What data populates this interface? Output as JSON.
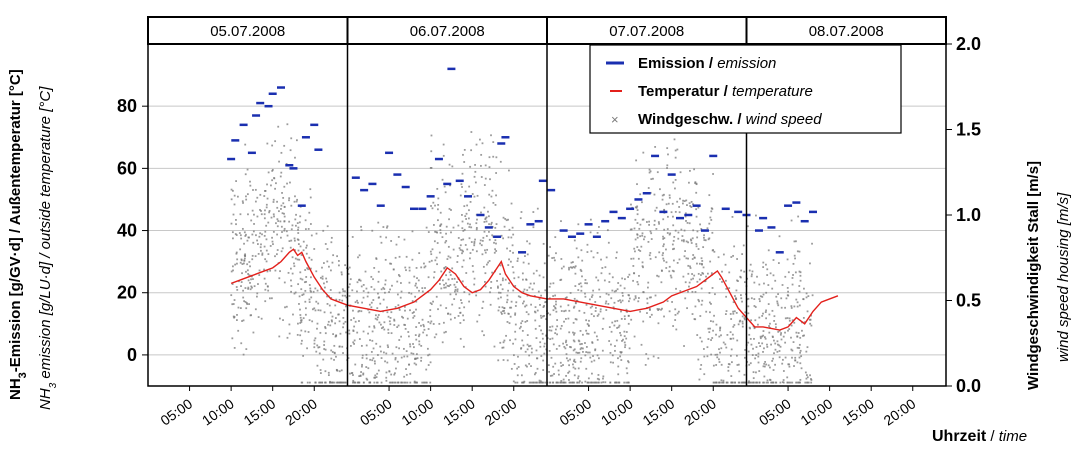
{
  "chart_data": {
    "type": "scatter",
    "dates": [
      "05.07.2008",
      "06.07.2008",
      "07.07.2008",
      "08.07.2008"
    ],
    "x_tick_labels": [
      "05:00",
      "10:00",
      "15:00",
      "20:00"
    ],
    "y_left": {
      "label_main": "NH",
      "label_main_sub": "3",
      "label_main_rest": "-Emission [g/GV·d]  / Außentemperatur [°C]",
      "label_sub": "NH",
      "label_sub_sub": "3",
      "label_sub_rest": " emission [g/LU·d] / outside temperature [°C]",
      "ticks": [
        0,
        20,
        40,
        60,
        80
      ],
      "range": [
        -10,
        100
      ]
    },
    "y_right": {
      "label_main": "Windgeschwindigkeit Stall [m/s]",
      "label_sub": "wind speed housing [m/s]",
      "ticks": [
        "0.0",
        "0.5",
        "1.0",
        "1.5",
        "2.0"
      ],
      "range": [
        0,
        2.0
      ]
    },
    "x_axis": {
      "label_main": "Uhrzeit",
      "label_sep": " / ",
      "label_sub": "time",
      "unit": "hours since 05.07.2008 00:00",
      "range": [
        0,
        96
      ]
    },
    "grid": true,
    "legend_position": "top-right",
    "series": [
      {
        "name": "Emission",
        "name_en": "emission",
        "color": "#1a2fb0",
        "marker": "dash",
        "axis": "left",
        "points": [
          [
            10.0,
            63
          ],
          [
            10.5,
            69
          ],
          [
            11.5,
            74
          ],
          [
            12.5,
            65
          ],
          [
            13.0,
            77
          ],
          [
            13.5,
            81
          ],
          [
            14.5,
            80
          ],
          [
            15.0,
            84
          ],
          [
            16.0,
            86
          ],
          [
            17.0,
            61
          ],
          [
            17.5,
            60
          ],
          [
            18.5,
            48
          ],
          [
            19.0,
            70
          ],
          [
            20.0,
            74
          ],
          [
            20.5,
            66
          ],
          [
            25.0,
            57
          ],
          [
            26.0,
            53
          ],
          [
            27.0,
            55
          ],
          [
            28.0,
            48
          ],
          [
            29.0,
            65
          ],
          [
            30.0,
            58
          ],
          [
            31.0,
            54
          ],
          [
            32.0,
            47
          ],
          [
            33.0,
            47
          ],
          [
            34.0,
            51
          ],
          [
            35.0,
            63
          ],
          [
            36.0,
            55
          ],
          [
            36.5,
            92
          ],
          [
            37.5,
            56
          ],
          [
            38.5,
            51
          ],
          [
            40.0,
            45
          ],
          [
            41.0,
            41
          ],
          [
            42.0,
            38
          ],
          [
            42.5,
            68
          ],
          [
            43.0,
            70
          ],
          [
            45.0,
            33
          ],
          [
            46.0,
            42
          ],
          [
            47.0,
            43
          ],
          [
            47.5,
            56
          ],
          [
            48.5,
            53
          ],
          [
            50.0,
            40
          ],
          [
            51.0,
            38
          ],
          [
            52.0,
            39
          ],
          [
            53.0,
            42
          ],
          [
            54.0,
            38
          ],
          [
            55.0,
            43
          ],
          [
            56.0,
            46
          ],
          [
            57.0,
            44
          ],
          [
            58.0,
            47
          ],
          [
            59.0,
            50
          ],
          [
            60.0,
            52
          ],
          [
            61.0,
            64
          ],
          [
            62.0,
            46
          ],
          [
            63.0,
            58
          ],
          [
            64.0,
            44
          ],
          [
            65.0,
            45
          ],
          [
            66.0,
            48
          ],
          [
            67.0,
            40
          ],
          [
            68.0,
            64
          ],
          [
            69.5,
            47
          ],
          [
            71.0,
            46
          ],
          [
            72.0,
            45
          ],
          [
            73.5,
            40
          ],
          [
            74.0,
            44
          ],
          [
            75.0,
            41
          ],
          [
            76.0,
            33
          ],
          [
            77.0,
            48
          ],
          [
            78.0,
            49
          ],
          [
            79.0,
            43
          ],
          [
            80.0,
            46
          ]
        ]
      },
      {
        "name": "Temperatur",
        "name_en": "temperature",
        "color": "#e3201b",
        "marker": "line",
        "axis": "left",
        "points": [
          [
            10.0,
            23
          ],
          [
            11.0,
            24
          ],
          [
            12.0,
            25
          ],
          [
            13.0,
            26
          ],
          [
            14.0,
            27
          ],
          [
            15.0,
            28
          ],
          [
            16.0,
            30
          ],
          [
            17.0,
            33
          ],
          [
            17.5,
            34
          ],
          [
            18.0,
            32
          ],
          [
            18.5,
            33
          ],
          [
            19.0,
            30
          ],
          [
            20.0,
            25
          ],
          [
            21.0,
            21
          ],
          [
            22.0,
            18
          ],
          [
            23.0,
            17
          ],
          [
            24.0,
            16
          ],
          [
            26.0,
            15
          ],
          [
            28.0,
            14
          ],
          [
            30.0,
            15
          ],
          [
            32.0,
            17
          ],
          [
            34.0,
            21
          ],
          [
            35.0,
            24
          ],
          [
            36.0,
            28
          ],
          [
            37.0,
            26
          ],
          [
            38.0,
            22
          ],
          [
            39.0,
            20
          ],
          [
            40.0,
            21
          ],
          [
            41.0,
            24
          ],
          [
            42.0,
            28
          ],
          [
            42.5,
            30
          ],
          [
            43.0,
            26
          ],
          [
            44.0,
            22
          ],
          [
            45.0,
            20
          ],
          [
            46.0,
            19
          ],
          [
            48.0,
            18
          ],
          [
            50.0,
            18
          ],
          [
            52.0,
            17
          ],
          [
            54.0,
            16
          ],
          [
            56.0,
            15
          ],
          [
            58.0,
            14
          ],
          [
            60.0,
            15
          ],
          [
            62.0,
            17
          ],
          [
            63.0,
            19
          ],
          [
            64.0,
            20
          ],
          [
            65.0,
            21
          ],
          [
            66.0,
            22
          ],
          [
            67.0,
            24
          ],
          [
            68.0,
            26
          ],
          [
            68.5,
            27
          ],
          [
            69.0,
            25
          ],
          [
            70.0,
            20
          ],
          [
            71.0,
            15
          ],
          [
            72.0,
            12
          ],
          [
            73.0,
            9
          ],
          [
            74.0,
            9
          ],
          [
            76.0,
            8
          ],
          [
            77.0,
            9
          ],
          [
            78.0,
            12
          ],
          [
            79.0,
            10
          ],
          [
            80.0,
            14
          ],
          [
            81.0,
            17
          ],
          [
            82.0,
            18
          ],
          [
            83.0,
            19
          ]
        ]
      },
      {
        "name": "Windgeschw.",
        "name_en": "wind speed",
        "color": "#7a7a7a",
        "marker": "x",
        "axis": "right",
        "density_note": "dense cloud of individual measurements",
        "points": []
      }
    ],
    "legend_sep": " / "
  }
}
